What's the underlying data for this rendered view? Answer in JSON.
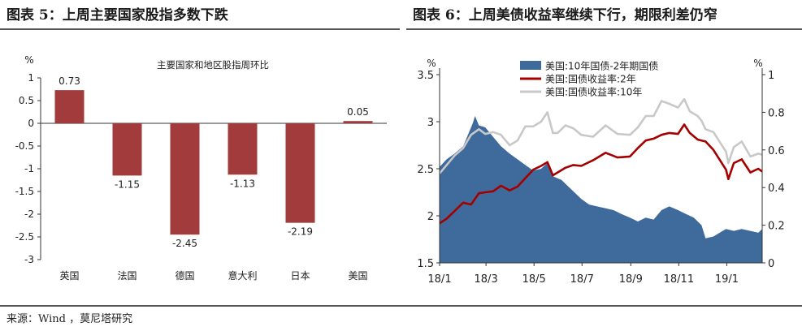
{
  "panels": {
    "left_title": "图表 5：上周主要国家股指多数下跌",
    "right_title": "图表 6：上周美债收益率继续下行，期限利差仍窄"
  },
  "source": "来源：Wind ，莫尼塔研究",
  "chart_data": [
    {
      "type": "bar",
      "title": "主要国家和地区股指周环比",
      "unit_label": "%",
      "categories": [
        "英国",
        "法国",
        "德国",
        "意大利",
        "日本",
        "美国"
      ],
      "values": [
        0.73,
        -1.15,
        -2.45,
        -1.13,
        -2.19,
        0.05
      ],
      "value_labels": [
        "0.73",
        "-1.15",
        "-2.45",
        "-1.13",
        "-2.19",
        "0.05"
      ],
      "ylim": [
        -3,
        1
      ],
      "yticks": [
        1,
        0.5,
        0,
        -0.5,
        -1,
        -1.5,
        -2,
        -2.5,
        -3
      ],
      "ytick_labels": [
        "1",
        "0.5",
        "0",
        "-0.5",
        "-1",
        "-1.5",
        "-2",
        "-2.5",
        "-3"
      ],
      "bar_color": "#a23b3b"
    },
    {
      "type": "area",
      "left_unit": "%",
      "right_unit": "%",
      "left_ylim": [
        1.5,
        3.5
      ],
      "right_ylim": [
        0,
        1
      ],
      "left_ticks": [
        "1.5",
        "2",
        "2.5",
        "3",
        "3.5"
      ],
      "right_ticks": [
        "0",
        "0.2",
        "0.4",
        "0.6",
        "0.8",
        "1"
      ],
      "x_ticks": [
        "18/1",
        "18/3",
        "18/5",
        "18/7",
        "18/9",
        "18/11",
        "19/1"
      ],
      "x_range": [
        "2018-01-01",
        "2019-02-15"
      ],
      "legend_position": "top-center",
      "series": [
        {
          "name": "美国:10年国债-2年期国债",
          "kind": "area",
          "axis": "right",
          "color": "#3f6a9c",
          "points": [
            [
              "2018-01-01",
              0.51
            ],
            [
              "2018-01-10",
              0.55
            ],
            [
              "2018-01-20",
              0.58
            ],
            [
              "2018-01-31",
              0.62
            ],
            [
              "2018-02-05",
              0.67
            ],
            [
              "2018-02-12",
              0.74
            ],
            [
              "2018-02-15",
              0.78
            ],
            [
              "2018-02-20",
              0.73
            ],
            [
              "2018-02-28",
              0.72
            ],
            [
              "2018-03-10",
              0.67
            ],
            [
              "2018-03-20",
              0.62
            ],
            [
              "2018-03-31",
              0.58
            ],
            [
              "2018-04-10",
              0.55
            ],
            [
              "2018-04-20",
              0.52
            ],
            [
              "2018-04-30",
              0.49
            ],
            [
              "2018-05-10",
              0.5
            ],
            [
              "2018-05-18",
              0.53
            ],
            [
              "2018-05-25",
              0.46
            ],
            [
              "2018-06-05",
              0.44
            ],
            [
              "2018-06-15",
              0.4
            ],
            [
              "2018-06-30",
              0.34
            ],
            [
              "2018-07-10",
              0.31
            ],
            [
              "2018-07-20",
              0.3
            ],
            [
              "2018-07-31",
              0.29
            ],
            [
              "2018-08-10",
              0.28
            ],
            [
              "2018-08-20",
              0.26
            ],
            [
              "2018-08-31",
              0.24
            ],
            [
              "2018-09-10",
              0.22
            ],
            [
              "2018-09-20",
              0.24
            ],
            [
              "2018-09-30",
              0.23
            ],
            [
              "2018-10-10",
              0.28
            ],
            [
              "2018-10-20",
              0.3
            ],
            [
              "2018-10-31",
              0.28
            ],
            [
              "2018-11-10",
              0.26
            ],
            [
              "2018-11-20",
              0.24
            ],
            [
              "2018-11-30",
              0.2
            ],
            [
              "2018-12-05",
              0.13
            ],
            [
              "2018-12-15",
              0.14
            ],
            [
              "2018-12-31",
              0.18
            ],
            [
              "2019-01-10",
              0.17
            ],
            [
              "2019-01-20",
              0.18
            ],
            [
              "2019-01-31",
              0.17
            ],
            [
              "2019-02-10",
              0.16
            ],
            [
              "2019-02-15",
              0.18
            ]
          ]
        },
        {
          "name": "美国:国债收益率:2年",
          "kind": "line",
          "axis": "left",
          "color": "#a50000",
          "points": [
            [
              "2018-01-01",
              1.92
            ],
            [
              "2018-01-10",
              1.97
            ],
            [
              "2018-01-20",
              2.05
            ],
            [
              "2018-01-31",
              2.14
            ],
            [
              "2018-02-10",
              2.12
            ],
            [
              "2018-02-20",
              2.24
            ],
            [
              "2018-02-28",
              2.25
            ],
            [
              "2018-03-10",
              2.26
            ],
            [
              "2018-03-20",
              2.32
            ],
            [
              "2018-03-31",
              2.27
            ],
            [
              "2018-04-10",
              2.31
            ],
            [
              "2018-04-20",
              2.4
            ],
            [
              "2018-04-30",
              2.49
            ],
            [
              "2018-05-10",
              2.53
            ],
            [
              "2018-05-18",
              2.57
            ],
            [
              "2018-05-25",
              2.43
            ],
            [
              "2018-05-31",
              2.46
            ],
            [
              "2018-06-10",
              2.51
            ],
            [
              "2018-06-20",
              2.54
            ],
            [
              "2018-06-30",
              2.53
            ],
            [
              "2018-07-15",
              2.59
            ],
            [
              "2018-07-31",
              2.67
            ],
            [
              "2018-08-15",
              2.62
            ],
            [
              "2018-08-31",
              2.63
            ],
            [
              "2018-09-10",
              2.72
            ],
            [
              "2018-09-20",
              2.8
            ],
            [
              "2018-09-30",
              2.82
            ],
            [
              "2018-10-10",
              2.86
            ],
            [
              "2018-10-20",
              2.88
            ],
            [
              "2018-10-31",
              2.87
            ],
            [
              "2018-11-08",
              2.97
            ],
            [
              "2018-11-15",
              2.88
            ],
            [
              "2018-11-25",
              2.81
            ],
            [
              "2018-11-30",
              2.8
            ],
            [
              "2018-12-05",
              2.79
            ],
            [
              "2018-12-15",
              2.7
            ],
            [
              "2018-12-31",
              2.49
            ],
            [
              "2019-01-03",
              2.39
            ],
            [
              "2019-01-10",
              2.56
            ],
            [
              "2019-01-20",
              2.6
            ],
            [
              "2019-01-31",
              2.46
            ],
            [
              "2019-02-10",
              2.5
            ],
            [
              "2019-02-15",
              2.47
            ]
          ]
        },
        {
          "name": "美国:国债收益率:10年",
          "kind": "line",
          "axis": "left",
          "color": "#c8c8c8",
          "points": [
            [
              "2018-01-01",
              2.45
            ],
            [
              "2018-01-10",
              2.54
            ],
            [
              "2018-01-20",
              2.64
            ],
            [
              "2018-01-31",
              2.72
            ],
            [
              "2018-02-10",
              2.86
            ],
            [
              "2018-02-20",
              2.92
            ],
            [
              "2018-02-28",
              2.87
            ],
            [
              "2018-03-10",
              2.89
            ],
            [
              "2018-03-20",
              2.86
            ],
            [
              "2018-03-31",
              2.75
            ],
            [
              "2018-04-10",
              2.8
            ],
            [
              "2018-04-20",
              2.95
            ],
            [
              "2018-04-30",
              2.95
            ],
            [
              "2018-05-10",
              3.0
            ],
            [
              "2018-05-18",
              3.1
            ],
            [
              "2018-05-25",
              2.88
            ],
            [
              "2018-05-31",
              2.88
            ],
            [
              "2018-06-10",
              2.96
            ],
            [
              "2018-06-20",
              2.93
            ],
            [
              "2018-06-30",
              2.86
            ],
            [
              "2018-07-15",
              2.84
            ],
            [
              "2018-07-31",
              2.96
            ],
            [
              "2018-08-15",
              2.87
            ],
            [
              "2018-08-31",
              2.86
            ],
            [
              "2018-09-10",
              2.94
            ],
            [
              "2018-09-20",
              3.06
            ],
            [
              "2018-09-30",
              3.06
            ],
            [
              "2018-10-10",
              3.22
            ],
            [
              "2018-10-20",
              3.19
            ],
            [
              "2018-10-31",
              3.15
            ],
            [
              "2018-11-08",
              3.24
            ],
            [
              "2018-11-15",
              3.11
            ],
            [
              "2018-11-25",
              3.06
            ],
            [
              "2018-11-30",
              3.01
            ],
            [
              "2018-12-05",
              2.92
            ],
            [
              "2018-12-15",
              2.89
            ],
            [
              "2018-12-31",
              2.68
            ],
            [
              "2019-01-03",
              2.56
            ],
            [
              "2019-01-10",
              2.73
            ],
            [
              "2019-01-20",
              2.79
            ],
            [
              "2019-01-31",
              2.63
            ],
            [
              "2019-02-10",
              2.66
            ],
            [
              "2019-02-15",
              2.65
            ]
          ]
        }
      ]
    }
  ]
}
